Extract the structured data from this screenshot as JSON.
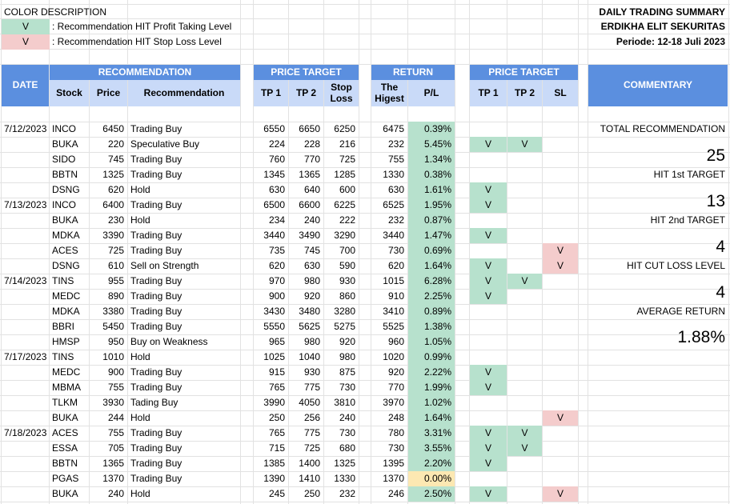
{
  "legend": {
    "title": "COLOR DESCRIPTION",
    "green_mark": "V",
    "green_text": ": Recommendation HIT Profit Taking Level",
    "red_mark": "V",
    "red_text": ": Recommendation HIT Stop Loss Level"
  },
  "summary_header": {
    "title": "DAILY TRADING SUMMARY",
    "company": "ERDIKHA ELIT SEKURITAS",
    "period": "Periode: 12-18 Juli 2023"
  },
  "headers": {
    "date": "DATE",
    "recommendation": "RECOMMENDATION",
    "stock": "Stock",
    "price": "Price",
    "recommendation_col": "Recommendation",
    "price_target": "PRICE TARGET",
    "tp1": "TP 1",
    "tp2": "TP 2",
    "stop_loss_1": "Stop",
    "stop_loss_2": "Loss",
    "return": "RETURN",
    "highest_1": "The",
    "highest_2": "Higest",
    "pl": "P/L",
    "hit_price_target": "PRICE TARGET",
    "hit_tp1": "TP 1",
    "hit_tp2": "TP 2",
    "hit_sl": "SL",
    "commentary": "COMMENTARY"
  },
  "colors": {
    "header_blue": "#5b8fdf",
    "subheader_blue": "#c9daf8",
    "hit_green": "#b7e1cd",
    "hit_red": "#f4cccc",
    "flat_yellow": "#fce8b2"
  },
  "rows": [
    {
      "date": "7/12/2023",
      "stock": "INCO",
      "price": "6450",
      "rec": "Trading Buy",
      "tp1": "6550",
      "tp2": "6650",
      "sl": "6250",
      "high": "6475",
      "pl": "0.39%",
      "h1": "",
      "h2": "",
      "hs": "",
      "yellow": false
    },
    {
      "date": "",
      "stock": "BUKA",
      "price": "220",
      "rec": "Speculative Buy",
      "tp1": "224",
      "tp2": "228",
      "sl": "216",
      "high": "232",
      "pl": "5.45%",
      "h1": "V",
      "h2": "V",
      "hs": "",
      "yellow": false
    },
    {
      "date": "",
      "stock": "SIDO",
      "price": "745",
      "rec": "Trading Buy",
      "tp1": "760",
      "tp2": "770",
      "sl": "725",
      "high": "755",
      "pl": "1.34%",
      "h1": "",
      "h2": "",
      "hs": "",
      "yellow": false
    },
    {
      "date": "",
      "stock": "BBTN",
      "price": "1325",
      "rec": "Trading Buy",
      "tp1": "1345",
      "tp2": "1365",
      "sl": "1285",
      "high": "1330",
      "pl": "0.38%",
      "h1": "",
      "h2": "",
      "hs": "",
      "yellow": false
    },
    {
      "date": "",
      "stock": "DSNG",
      "price": "620",
      "rec": "Hold",
      "tp1": "630",
      "tp2": "640",
      "sl": "600",
      "high": "630",
      "pl": "1.61%",
      "h1": "V",
      "h2": "",
      "hs": "",
      "yellow": false
    },
    {
      "date": "7/13/2023",
      "stock": "INCO",
      "price": "6400",
      "rec": "Trading Buy",
      "tp1": "6500",
      "tp2": "6600",
      "sl": "6225",
      "high": "6525",
      "pl": "1.95%",
      "h1": "V",
      "h2": "",
      "hs": "",
      "yellow": false
    },
    {
      "date": "",
      "stock": "BUKA",
      "price": "230",
      "rec": "Hold",
      "tp1": "234",
      "tp2": "240",
      "sl": "222",
      "high": "232",
      "pl": "0.87%",
      "h1": "",
      "h2": "",
      "hs": "",
      "yellow": false
    },
    {
      "date": "",
      "stock": "MDKA",
      "price": "3390",
      "rec": "Trading Buy",
      "tp1": "3440",
      "tp2": "3490",
      "sl": "3290",
      "high": "3440",
      "pl": "1.47%",
      "h1": "V",
      "h2": "",
      "hs": "",
      "yellow": false
    },
    {
      "date": "",
      "stock": "ACES",
      "price": "725",
      "rec": "Trading Buy",
      "tp1": "735",
      "tp2": "745",
      "sl": "700",
      "high": "730",
      "pl": "0.69%",
      "h1": "",
      "h2": "",
      "hs": "V",
      "yellow": false
    },
    {
      "date": "",
      "stock": "DSNG",
      "price": "610",
      "rec": "Sell on Strength",
      "tp1": "620",
      "tp2": "630",
      "sl": "590",
      "high": "620",
      "pl": "1.64%",
      "h1": "V",
      "h2": "",
      "hs": "V",
      "yellow": false
    },
    {
      "date": "7/14/2023",
      "stock": "TINS",
      "price": "955",
      "rec": "Trading Buy",
      "tp1": "970",
      "tp2": "980",
      "sl": "930",
      "high": "1015",
      "pl": "6.28%",
      "h1": "V",
      "h2": "V",
      "hs": "",
      "yellow": false
    },
    {
      "date": "",
      "stock": "MEDC",
      "price": "890",
      "rec": "Trading Buy",
      "tp1": "900",
      "tp2": "920",
      "sl": "860",
      "high": "910",
      "pl": "2.25%",
      "h1": "V",
      "h2": "",
      "hs": "",
      "yellow": false
    },
    {
      "date": "",
      "stock": "MDKA",
      "price": "3380",
      "rec": "Trading Buy",
      "tp1": "3430",
      "tp2": "3480",
      "sl": "3280",
      "high": "3410",
      "pl": "0.89%",
      "h1": "",
      "h2": "",
      "hs": "",
      "yellow": false
    },
    {
      "date": "",
      "stock": "BBRI",
      "price": "5450",
      "rec": "Trading Buy",
      "tp1": "5550",
      "tp2": "5625",
      "sl": "5275",
      "high": "5525",
      "pl": "1.38%",
      "h1": "",
      "h2": "",
      "hs": "",
      "yellow": false
    },
    {
      "date": "",
      "stock": "HMSP",
      "price": "950",
      "rec": "Buy on Weakness",
      "tp1": "965",
      "tp2": "980",
      "sl": "920",
      "high": "960",
      "pl": "1.05%",
      "h1": "",
      "h2": "",
      "hs": "",
      "yellow": false
    },
    {
      "date": "7/17/2023",
      "stock": "TINS",
      "price": "1010",
      "rec": "Hold",
      "tp1": "1025",
      "tp2": "1040",
      "sl": "980",
      "high": "1020",
      "pl": "0.99%",
      "h1": "",
      "h2": "",
      "hs": "",
      "yellow": false
    },
    {
      "date": "",
      "stock": "MEDC",
      "price": "900",
      "rec": "Trading Buy",
      "tp1": "915",
      "tp2": "930",
      "sl": "875",
      "high": "920",
      "pl": "2.22%",
      "h1": "V",
      "h2": "",
      "hs": "",
      "yellow": false
    },
    {
      "date": "",
      "stock": "MBMA",
      "price": "755",
      "rec": "Trading Buy",
      "tp1": "765",
      "tp2": "775",
      "sl": "730",
      "high": "770",
      "pl": "1.99%",
      "h1": "V",
      "h2": "",
      "hs": "",
      "yellow": false
    },
    {
      "date": "",
      "stock": "TLKM",
      "price": "3930",
      "rec": "Tading Buy",
      "tp1": "3990",
      "tp2": "4050",
      "sl": "3810",
      "high": "3970",
      "pl": "1.02%",
      "h1": "",
      "h2": "",
      "hs": "",
      "yellow": false
    },
    {
      "date": "",
      "stock": "BUKA",
      "price": "244",
      "rec": "Hold",
      "tp1": "250",
      "tp2": "256",
      "sl": "240",
      "high": "248",
      "pl": "1.64%",
      "h1": "",
      "h2": "",
      "hs": "V",
      "yellow": false
    },
    {
      "date": "7/18/2023",
      "stock": "ACES",
      "price": "755",
      "rec": "Trading Buy",
      "tp1": "765",
      "tp2": "775",
      "sl": "730",
      "high": "780",
      "pl": "3.31%",
      "h1": "V",
      "h2": "V",
      "hs": "",
      "yellow": false
    },
    {
      "date": "",
      "stock": "ESSA",
      "price": "705",
      "rec": "Trading Buy",
      "tp1": "715",
      "tp2": "725",
      "sl": "680",
      "high": "730",
      "pl": "3.55%",
      "h1": "V",
      "h2": "V",
      "hs": "",
      "yellow": false
    },
    {
      "date": "",
      "stock": "BBTN",
      "price": "1365",
      "rec": "Trading Buy",
      "tp1": "1385",
      "tp2": "1400",
      "sl": "1325",
      "high": "1395",
      "pl": "2.20%",
      "h1": "V",
      "h2": "",
      "hs": "",
      "yellow": false
    },
    {
      "date": "",
      "stock": "PGAS",
      "price": "1370",
      "rec": "Trading Buy",
      "tp1": "1390",
      "tp2": "1410",
      "sl": "1330",
      "high": "1370",
      "pl": "0.00%",
      "h1": "",
      "h2": "",
      "hs": "",
      "yellow": true
    },
    {
      "date": "",
      "stock": "BUKA",
      "price": "240",
      "rec": "Hold",
      "tp1": "245",
      "tp2": "250",
      "sl": "232",
      "high": "246",
      "pl": "2.50%",
      "h1": "V",
      "h2": "",
      "hs": "V",
      "yellow": false
    }
  ],
  "commentary": {
    "total_label": "TOTAL RECOMMENDATION",
    "total_value": "25",
    "hit1_label": "HIT 1st TARGET",
    "hit1_value": "13",
    "hit2_label": "HIT 2nd TARGET",
    "hit2_value": "4",
    "cut_label": "HIT CUT LOSS LEVEL",
    "cut_value": "4",
    "avg_label": "AVERAGE RETURN",
    "avg_value": "1.88%"
  }
}
